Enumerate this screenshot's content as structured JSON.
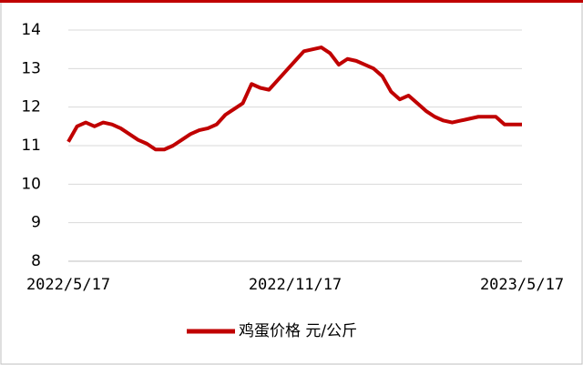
{
  "chart_data": {
    "type": "line",
    "categories": [
      "2022/5/17",
      null,
      null,
      null,
      null,
      null,
      null,
      null,
      null,
      null,
      null,
      null,
      null,
      null,
      null,
      null,
      null,
      null,
      null,
      null,
      null,
      null,
      null,
      null,
      null,
      null,
      "2022/11/17",
      null,
      null,
      null,
      null,
      null,
      null,
      null,
      null,
      null,
      null,
      null,
      null,
      null,
      null,
      null,
      null,
      null,
      null,
      null,
      null,
      null,
      null,
      null,
      null,
      null,
      "2023/5/17"
    ],
    "series": [
      {
        "name": "鸡蛋价格 元/公斤",
        "color": "#c00000",
        "values": [
          11.1,
          11.5,
          11.6,
          11.5,
          11.6,
          11.55,
          11.45,
          11.3,
          11.15,
          11.05,
          10.9,
          10.9,
          11.0,
          11.15,
          11.3,
          11.4,
          11.45,
          11.55,
          11.8,
          11.95,
          12.1,
          12.6,
          12.5,
          12.45,
          12.7,
          12.95,
          13.2,
          13.45,
          13.5,
          13.55,
          13.4,
          13.1,
          13.25,
          13.2,
          13.1,
          13.0,
          12.8,
          12.4,
          12.2,
          12.3,
          12.1,
          11.9,
          11.75,
          11.65,
          11.6,
          11.65,
          11.7,
          11.75,
          11.75,
          11.75,
          11.55,
          11.55,
          11.55
        ]
      }
    ],
    "ylim": [
      8,
      14
    ],
    "yticks": [
      8,
      9,
      10,
      11,
      12,
      13,
      14
    ],
    "grid": true,
    "legend": "bottom"
  }
}
